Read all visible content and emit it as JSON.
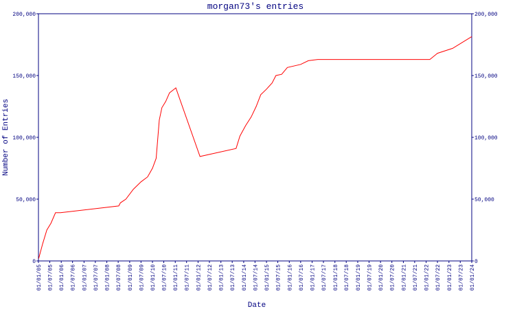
{
  "chart_data": {
    "type": "line",
    "title": "morgan73's entries",
    "x_label": "Date",
    "y_label": "Number of Entries",
    "x": [
      "2005-01-05",
      "2005-03-10",
      "2005-05-15",
      "2005-07-20",
      "2005-10-01",
      "2005-12-20",
      "2008-07-10",
      "2008-08-05",
      "2008-11-01",
      "2009-03-01",
      "2009-07-01",
      "2009-10-15",
      "2010-01-01",
      "2010-03-01",
      "2010-04-20",
      "2010-06-01",
      "2010-08-01",
      "2010-10-01",
      "2011-01-10",
      "2012-02-01",
      "2013-09-01",
      "2013-11-01",
      "2014-02-01",
      "2014-05-01",
      "2014-07-20",
      "2014-10-01",
      "2015-01-01",
      "2015-04-01",
      "2015-06-01",
      "2015-09-01",
      "2015-12-01",
      "2016-07-01",
      "2016-11-01",
      "2017-04-01",
      "2022-03-01",
      "2022-07-01",
      "2023-03-01",
      "2024-01-01"
    ],
    "series": [
      {
        "name": "entries",
        "color": "#ff0000",
        "values": [
          2000,
          14000,
          25000,
          30500,
          39000,
          39000,
          44500,
          47000,
          50000,
          58000,
          64000,
          68000,
          75000,
          83000,
          114000,
          124000,
          129000,
          136000,
          140000,
          84500,
          91000,
          101000,
          109500,
          116500,
          125000,
          134500,
          139000,
          144000,
          150000,
          151000,
          156500,
          159000,
          162000,
          163000,
          163000,
          168000,
          172000,
          181500
        ]
      }
    ],
    "xlim": [
      "2005-01-01",
      "2024-01-01"
    ],
    "xticks": [
      {
        "value": "2005-01-01",
        "label": "01/01/05"
      },
      {
        "value": "2005-07-01",
        "label": "01/07/05"
      },
      {
        "value": "2006-01-01",
        "label": "01/01/06"
      },
      {
        "value": "2006-07-01",
        "label": "01/07/06"
      },
      {
        "value": "2007-01-01",
        "label": "01/01/07"
      },
      {
        "value": "2007-07-01",
        "label": "01/07/07"
      },
      {
        "value": "2008-01-01",
        "label": "01/01/08"
      },
      {
        "value": "2008-07-01",
        "label": "01/07/08"
      },
      {
        "value": "2009-01-01",
        "label": "01/01/09"
      },
      {
        "value": "2009-07-01",
        "label": "01/07/09"
      },
      {
        "value": "2010-01-01",
        "label": "01/01/10"
      },
      {
        "value": "2010-07-01",
        "label": "01/07/10"
      },
      {
        "value": "2011-01-01",
        "label": "01/01/11"
      },
      {
        "value": "2011-07-01",
        "label": "01/07/11"
      },
      {
        "value": "2012-01-01",
        "label": "01/01/12"
      },
      {
        "value": "2012-07-01",
        "label": "01/07/12"
      },
      {
        "value": "2013-01-01",
        "label": "01/01/13"
      },
      {
        "value": "2013-07-01",
        "label": "01/07/13"
      },
      {
        "value": "2014-01-01",
        "label": "01/01/14"
      },
      {
        "value": "2014-07-01",
        "label": "01/07/14"
      },
      {
        "value": "2015-01-01",
        "label": "01/01/15"
      },
      {
        "value": "2015-07-01",
        "label": "01/07/15"
      },
      {
        "value": "2016-01-01",
        "label": "01/01/16"
      },
      {
        "value": "2016-07-01",
        "label": "01/07/16"
      },
      {
        "value": "2017-01-01",
        "label": "01/01/17"
      },
      {
        "value": "2017-07-01",
        "label": "01/07/17"
      },
      {
        "value": "2018-01-01",
        "label": "01/01/18"
      },
      {
        "value": "2018-07-01",
        "label": "01/07/18"
      },
      {
        "value": "2019-01-01",
        "label": "01/01/19"
      },
      {
        "value": "2019-07-01",
        "label": "01/07/19"
      },
      {
        "value": "2020-01-01",
        "label": "01/01/20"
      },
      {
        "value": "2020-07-01",
        "label": "01/07/20"
      },
      {
        "value": "2021-01-01",
        "label": "01/01/21"
      },
      {
        "value": "2021-07-01",
        "label": "01/07/21"
      },
      {
        "value": "2022-01-01",
        "label": "01/01/22"
      },
      {
        "value": "2022-07-01",
        "label": "01/07/22"
      },
      {
        "value": "2023-01-01",
        "label": "01/01/23"
      },
      {
        "value": "2023-07-01",
        "label": "01/07/23"
      },
      {
        "value": "2024-01-01",
        "label": "01/01/24"
      }
    ],
    "ylim": [
      0,
      200000
    ],
    "yticks": [
      0,
      {
        "value": 50000,
        "label": "50,000"
      },
      {
        "value": 100000,
        "label": "100,000"
      },
      {
        "value": 150000,
        "label": "150,000"
      },
      {
        "value": 200000,
        "label": "200,000"
      }
    ],
    "y2lim": [
      0,
      200000
    ],
    "y2ticks": [
      0,
      {
        "value": 50000,
        "label": "50,000"
      },
      {
        "value": 100000,
        "label": "100,000"
      },
      {
        "value": 150000,
        "label": "150,000"
      },
      {
        "value": 200000,
        "label": "200,000"
      }
    ]
  }
}
